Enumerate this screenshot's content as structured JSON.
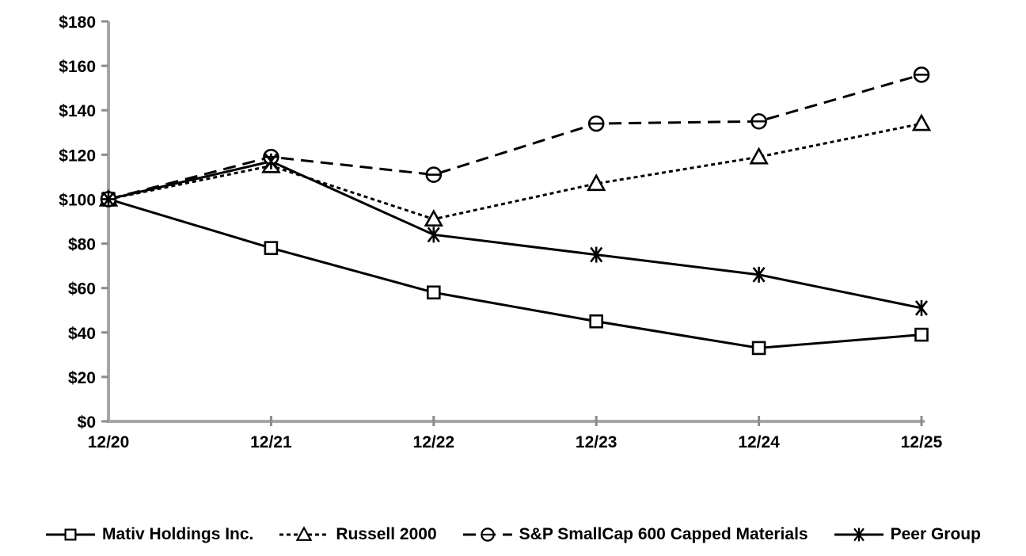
{
  "chart_data": {
    "type": "line",
    "title": "",
    "categories": [
      "12/20",
      "12/21",
      "12/22",
      "12/23",
      "12/24",
      "12/25"
    ],
    "series": [
      {
        "name": "Mativ Holdings Inc.",
        "marker": "square",
        "line_style": "solid",
        "values": [
          100,
          78,
          58,
          45,
          33,
          39
        ]
      },
      {
        "name": "Russell 2000",
        "marker": "triangle",
        "line_style": "short-dash",
        "values": [
          100,
          115,
          91,
          107,
          119,
          134
        ]
      },
      {
        "name": "S&P SmallCap 600 Capped Materials",
        "marker": "circle",
        "line_style": "long-dash",
        "values": [
          100,
          119,
          111,
          134,
          135,
          156
        ]
      },
      {
        "name": "Peer Group",
        "marker": "asterisk",
        "line_style": "solid",
        "values": [
          100,
          117,
          84,
          75,
          66,
          51
        ]
      }
    ],
    "y_axis": {
      "min": 0,
      "max": 180,
      "step": 20,
      "prefix": "$",
      "tick_labels": [
        "$0",
        "$20",
        "$40",
        "$60",
        "$80",
        "$100",
        "$120",
        "$140",
        "$160",
        "$180"
      ]
    },
    "x_axis": {
      "labels": [
        "12/20",
        "12/21",
        "12/22",
        "12/23",
        "12/24",
        "12/25"
      ]
    },
    "ylim": [
      0,
      180
    ],
    "grid": false,
    "legend_position": "bottom",
    "colors": {
      "series": "#000000",
      "marker_fill": "#ffffff",
      "axis_line": "#a6a6a6",
      "tick": "#8c8c8c",
      "text": "#000000",
      "background": "#ffffff"
    }
  }
}
